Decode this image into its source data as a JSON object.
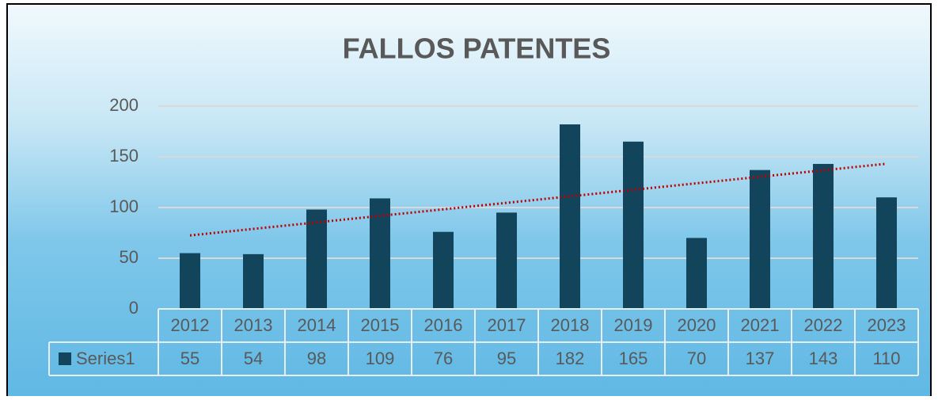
{
  "chart_data": {
    "type": "bar",
    "title": "FALLOS PATENTES",
    "categories": [
      "2012",
      "2013",
      "2014",
      "2015",
      "2016",
      "2017",
      "2018",
      "2019",
      "2020",
      "2021",
      "2022",
      "2023"
    ],
    "series": [
      {
        "name": "Series1",
        "color": "#12445c",
        "values": [
          55,
          54,
          98,
          109,
          76,
          95,
          182,
          165,
          70,
          137,
          143,
          110
        ]
      }
    ],
    "ylim": [
      0,
      200
    ],
    "yticks": [
      0,
      50,
      100,
      150,
      200
    ],
    "grid": true,
    "trendline": "linear",
    "trendline_color": "#c00000",
    "data_table": true
  }
}
